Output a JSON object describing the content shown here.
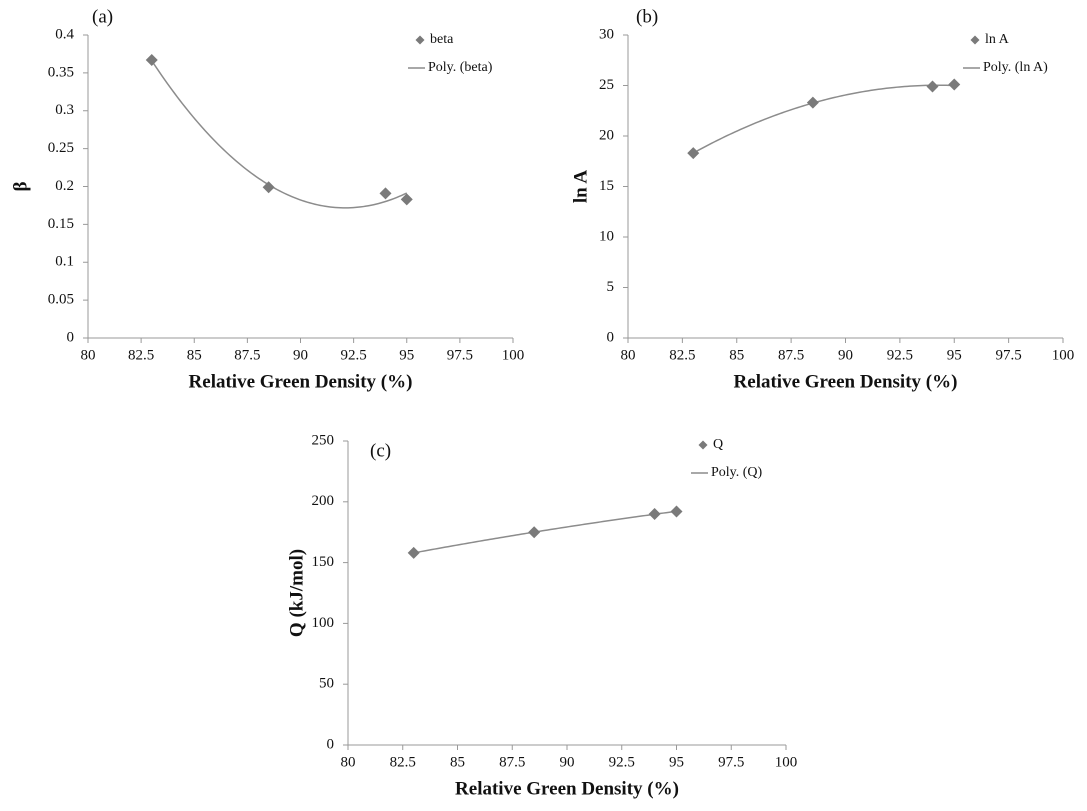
{
  "chart_data": [
    {
      "type": "scatter",
      "panel_label": "(a)",
      "x_label": "Relative Green Density (%)",
      "y_label": "β",
      "x": [
        83,
        88.5,
        94,
        95
      ],
      "series": [
        {
          "name": "beta",
          "color": "#7a7a7a",
          "values": [
            0.367,
            0.199,
            0.191,
            0.183
          ],
          "trendline": "poly",
          "trendline_order": 2,
          "trendline_name": "Poly. (beta)",
          "trendline_color": "#8c8c8c"
        }
      ],
      "xlim": [
        80,
        100
      ],
      "xticks": [
        80,
        82.5,
        85,
        87.5,
        90,
        92.5,
        95,
        97.5,
        100
      ],
      "ylim": [
        0,
        0.4
      ],
      "yticks": [
        0,
        0.05,
        0.1,
        0.15,
        0.2,
        0.25,
        0.3,
        0.35,
        0.4
      ],
      "legend": "upper right"
    },
    {
      "type": "scatter",
      "panel_label": "(b)",
      "x_label": "Relative Green Density (%)",
      "y_label": "ln A",
      "x": [
        83,
        88.5,
        94,
        95
      ],
      "series": [
        {
          "name": "ln A",
          "color": "#7a7a7a",
          "values": [
            18.3,
            23.3,
            24.9,
            25.1
          ],
          "trendline": "poly",
          "trendline_order": 2,
          "trendline_name": "Poly. (ln A)",
          "trendline_color": "#8c8c8c"
        }
      ],
      "xlim": [
        80,
        100
      ],
      "xticks": [
        80,
        82.5,
        85,
        87.5,
        90,
        92.5,
        95,
        97.5,
        100
      ],
      "ylim": [
        0,
        30
      ],
      "yticks": [
        0,
        5,
        10,
        15,
        20,
        25,
        30
      ],
      "legend": "upper right"
    },
    {
      "type": "scatter",
      "panel_label": "(c)",
      "x_label": "Relative Green Density (%)",
      "y_label": "Q (kJ/mol)",
      "x": [
        83,
        88.5,
        94,
        95
      ],
      "series": [
        {
          "name": "Q",
          "color": "#7a7a7a",
          "values": [
            158,
            175,
            190,
            192
          ],
          "trendline": "poly",
          "trendline_order": 2,
          "trendline_name": "Poly. (Q)",
          "trendline_color": "#8c8c8c"
        }
      ],
      "xlim": [
        80,
        100
      ],
      "xticks": [
        80,
        82.5,
        85,
        87.5,
        90,
        92.5,
        95,
        97.5,
        100
      ],
      "ylim": [
        0,
        250
      ],
      "yticks": [
        0,
        50,
        100,
        150,
        200,
        250
      ],
      "legend": "upper right"
    }
  ]
}
